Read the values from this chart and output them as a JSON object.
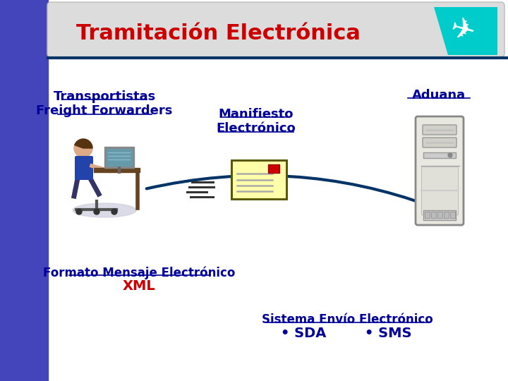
{
  "title": "Tramitación Electrónica",
  "title_color": "#CC0000",
  "left_bar_color": "#4444BB",
  "background_color": "#FFFFFF",
  "header_line_color": "#003366",
  "text_transportistas1": "Transportistas",
  "text_transportistas2": "Freight Forwarders",
  "text_manifiesto1": "Manifiesto",
  "text_manifiesto2": "Electrónico",
  "text_aduana": "Aduana",
  "text_formato": "Formato Mensaje Electrónico",
  "text_xml": "XML",
  "text_sistema": "Sistema Envío Electrónico",
  "text_sda": "• SDA",
  "text_sms": "• SMS",
  "arrow_color": "#003366",
  "envelope_fill": "#FFFFAA",
  "envelope_border": "#888800",
  "envelope_stamp": "#CC0000",
  "text_color": "#000099"
}
